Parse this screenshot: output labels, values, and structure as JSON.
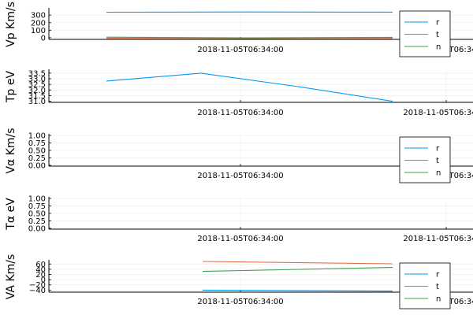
{
  "chart_data": [
    {
      "type": "line",
      "ylabel": "Vp Km/s",
      "xtick": "2018-11-05T06:34:00",
      "yticks": [
        0,
        100,
        200,
        300
      ],
      "ylim": [
        -22,
        375
      ],
      "legend": true,
      "series": [
        {
          "name": "r",
          "x": [
            0.0,
            0.5,
            1.0
          ],
          "y": [
            338,
            342,
            340
          ]
        },
        {
          "name": "t",
          "x": [
            0.0,
            0.5,
            1.0
          ],
          "y": [
            -8,
            -10,
            -9
          ]
        },
        {
          "name": "n",
          "x": [
            0.0,
            0.5,
            1.0
          ],
          "y": [
            7,
            -2,
            5
          ]
        }
      ]
    },
    {
      "type": "line",
      "ylabel": "Tp eV",
      "xtick": "2018-11-05T06:34:00",
      "yticks": [
        31.0,
        31.5,
        32.0,
        32.5,
        33.0,
        33.5
      ],
      "ylim": [
        30.9,
        33.7
      ],
      "legend": false,
      "series": [
        {
          "name": "r",
          "x": [
            0.0,
            0.33,
            0.67,
            1.0
          ],
          "y": [
            32.8,
            33.5,
            32.3,
            31.0
          ]
        }
      ]
    },
    {
      "type": "line",
      "ylabel": "Vα Km/s",
      "xtick": "2018-11-05T06:34:00",
      "yticks": [
        0.0,
        0.25,
        0.5,
        0.75,
        1.0
      ],
      "ylim": [
        -0.03,
        1.0
      ],
      "legend": true,
      "series": [
        {
          "name": "r",
          "x": [],
          "y": []
        },
        {
          "name": "t",
          "x": [],
          "y": []
        },
        {
          "name": "n",
          "x": [],
          "y": []
        }
      ]
    },
    {
      "type": "line",
      "ylabel": "Tα eV",
      "xtick": "2018-11-05T06:34:00",
      "yticks": [
        0.0,
        0.25,
        0.5,
        0.75,
        1.0
      ],
      "ylim": [
        -0.03,
        1.0
      ],
      "legend": false,
      "series": []
    },
    {
      "type": "line",
      "ylabel": "VA Km/s",
      "xtick": "2018-11-05T06:34:00",
      "yticks": [
        -40,
        -20,
        0,
        20,
        40,
        60
      ],
      "ylim": [
        -48,
        70
      ],
      "legend": true,
      "series": [
        {
          "name": "r",
          "x": [
            0.0,
            1.0
          ],
          "y": [
            -40,
            -44
          ]
        },
        {
          "name": "t",
          "x": [
            0.0,
            1.0
          ],
          "y": [
            70,
            61
          ]
        },
        {
          "name": "n",
          "x": [
            0.0,
            1.0
          ],
          "y": [
            32,
            47
          ]
        }
      ]
    }
  ],
  "colors": {
    "r": "#009af9",
    "t": "#e26f46",
    "n": "#3da44d"
  }
}
